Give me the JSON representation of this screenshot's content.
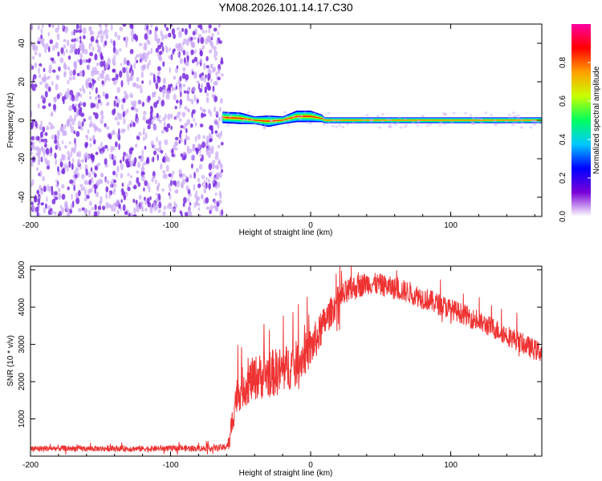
{
  "title": "YM08.2026.101.14.17.C30",
  "colors": {
    "series": "#ee3333",
    "background": "#ffffff",
    "axis": "#000000",
    "scatter": "#7a2ee0",
    "scatter_light": "#c9a8f5"
  },
  "chart_data": [
    {
      "type": "heatmap",
      "name": "spectrogram",
      "title": "YM08.2026.101.14.17.C30",
      "xlabel": "Height of straight line (km)",
      "ylabel": "Frequency (Hz)",
      "xlim": [
        -200,
        165
      ],
      "ylim": [
        -50,
        50
      ],
      "xticks": [
        -200,
        -100,
        0,
        100
      ],
      "xtick_labels": [
        "-200",
        "-100",
        "0",
        "100"
      ],
      "yticks": [
        -40,
        -20,
        0,
        20,
        40
      ],
      "ytick_labels": [
        "-40",
        "-20",
        "0",
        "20",
        "40"
      ],
      "colorbar": {
        "label": "Normalized spectral amplitude",
        "range": [
          0,
          1
        ],
        "ticks": [
          0.0,
          0.2,
          0.4,
          0.6,
          0.8
        ],
        "tick_labels": [
          "0.0",
          "0.2",
          "0.4",
          "0.6",
          "0.8"
        ],
        "stops": [
          "#ffffff",
          "#7a00d8",
          "#0000ff",
          "#00c8ff",
          "#00ff60",
          "#c8ff00",
          "#ffa000",
          "#ff0000",
          "#ff00a0"
        ]
      },
      "noise_region": {
        "x_from": -200,
        "x_to": -63,
        "freq_from": -50,
        "freq_to": 50,
        "amplitude_range": [
          0.0,
          0.2
        ]
      },
      "signal_band": [
        {
          "x": -63,
          "freq": 1.5,
          "bandwidth": 3,
          "amplitude": 0.75
        },
        {
          "x": -50,
          "freq": 1.0,
          "bandwidth": 3,
          "amplitude": 0.8
        },
        {
          "x": -40,
          "freq": 0.0,
          "bandwidth": 2,
          "amplitude": 0.85
        },
        {
          "x": -30,
          "freq": -0.5,
          "bandwidth": 3,
          "amplitude": 0.75
        },
        {
          "x": -20,
          "freq": 0.0,
          "bandwidth": 2,
          "amplitude": 0.8
        },
        {
          "x": -10,
          "freq": 2.0,
          "bandwidth": 3,
          "amplitude": 0.9
        },
        {
          "x": 0,
          "freq": 2.0,
          "bandwidth": 3,
          "amplitude": 0.9
        },
        {
          "x": 8,
          "freq": 1.0,
          "bandwidth": 2,
          "amplitude": 0.85
        },
        {
          "x": 10,
          "freq": 0.0,
          "bandwidth": 1.5,
          "amplitude": 0.9
        },
        {
          "x": 165,
          "freq": 0.0,
          "bandwidth": 1.5,
          "amplitude": 0.9
        }
      ]
    },
    {
      "type": "line",
      "name": "snr",
      "xlabel": "Height of straight line (km)",
      "ylabel": "SNR (10 * v/v)",
      "xlim": [
        -200,
        165
      ],
      "ylim": [
        0,
        5100
      ],
      "xticks": [
        -200,
        -100,
        0,
        100
      ],
      "xtick_labels": [
        "-200",
        "-100",
        "0",
        "100"
      ],
      "yticks": [
        1000,
        2000,
        3000,
        4000,
        5000
      ],
      "ytick_labels": [
        "1000",
        "2000",
        "3000",
        "4000",
        "5000"
      ],
      "series": [
        {
          "name": "SNR",
          "x": [
            -200,
            -180,
            -160,
            -140,
            -120,
            -100,
            -80,
            -62,
            -58,
            -56,
            -54,
            -50,
            -40,
            -30,
            -20,
            -10,
            0,
            5,
            10,
            15,
            20,
            30,
            40,
            50,
            60,
            70,
            80,
            90,
            100,
            110,
            120,
            130,
            140,
            150,
            160,
            165
          ],
          "y": [
            200,
            210,
            200,
            205,
            200,
            210,
            210,
            230,
            350,
            900,
            1500,
            1800,
            2100,
            2200,
            2300,
            2500,
            2900,
            3200,
            3600,
            3900,
            4200,
            4500,
            4650,
            4600,
            4500,
            4400,
            4250,
            4100,
            3950,
            3800,
            3600,
            3450,
            3250,
            3050,
            2850,
            2800
          ],
          "noise_amplitude": [
            80,
            80,
            80,
            80,
            80,
            80,
            80,
            90,
            200,
            400,
            500,
            550,
            600,
            650,
            650,
            600,
            550,
            500,
            450,
            400,
            400,
            350,
            300,
            300,
            300,
            300,
            300,
            300,
            280,
            280,
            280,
            280,
            280,
            280,
            280,
            280
          ]
        }
      ]
    }
  ]
}
